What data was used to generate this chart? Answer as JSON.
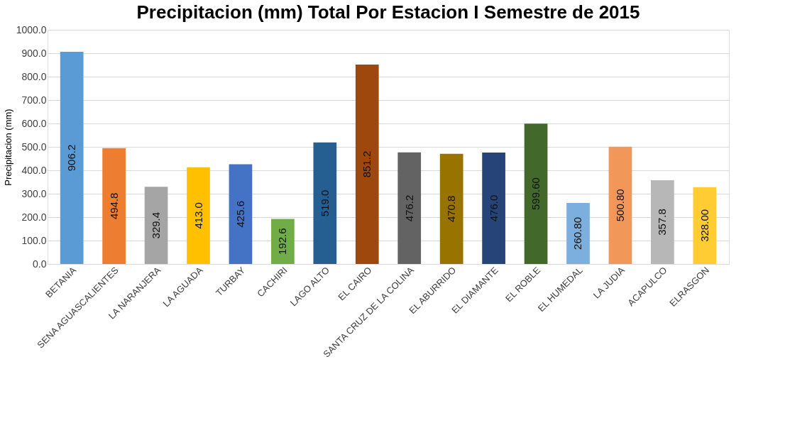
{
  "chart_data": {
    "type": "bar",
    "title": "Precipitacion (mm) Total Por Estacion I Semestre de 2015",
    "ylabel": "Precipitacion (mm)",
    "categories": [
      "BETANIA",
      "SENA AGUASCALIENTES",
      "LA NARANJERA",
      "LA AGUADA",
      "TURBAY",
      "CACHIRI",
      "LAGO ALTO",
      "EL CAIRO",
      "SANTA CRUZ DE LA COLINA",
      "EL ABURRIDO",
      "EL DIAMANTE",
      "EL ROBLE",
      "EL HUMEDAL",
      "LA JUDIA",
      "ACAPULCO",
      "ELRASGON"
    ],
    "values": [
      906.2,
      494.8,
      329.4,
      413.0,
      425.6,
      192.6,
      519.0,
      851.2,
      476.2,
      470.8,
      476.0,
      599.6,
      260.8,
      500.8,
      357.8,
      328.0
    ],
    "value_labels": [
      "906.2",
      "494.8",
      "329.4",
      "413.0",
      "425.6",
      "192.6",
      "519.0",
      "851.2",
      "476.2",
      "470.8",
      "476.0",
      "599.60",
      "260.80",
      "500.80",
      "357.8",
      "328.00"
    ],
    "colors": [
      "#5b9bd5",
      "#ed7d31",
      "#a5a5a5",
      "#ffc000",
      "#4472c4",
      "#70ad47",
      "#255e91",
      "#9e480e",
      "#636363",
      "#997300",
      "#264478",
      "#43682b",
      "#7cafdd",
      "#f1975a",
      "#b7b7b7",
      "#ffcd33"
    ],
    "ylim": [
      0,
      1000
    ],
    "yticks": [
      {
        "value": 0,
        "label": "0.0"
      },
      {
        "value": 100,
        "label": "100.0"
      },
      {
        "value": 200,
        "label": "200.0"
      },
      {
        "value": 300,
        "label": "300.0"
      },
      {
        "value": 400,
        "label": "400.0"
      },
      {
        "value": 500,
        "label": "500.0"
      },
      {
        "value": 600,
        "label": "600.0"
      },
      {
        "value": 700,
        "label": "700.0"
      },
      {
        "value": 800,
        "label": "800.0"
      },
      {
        "value": 900,
        "label": "900.0"
      },
      {
        "value": 1000,
        "label": "1000.0"
      }
    ],
    "grid": "y",
    "legend": false
  }
}
